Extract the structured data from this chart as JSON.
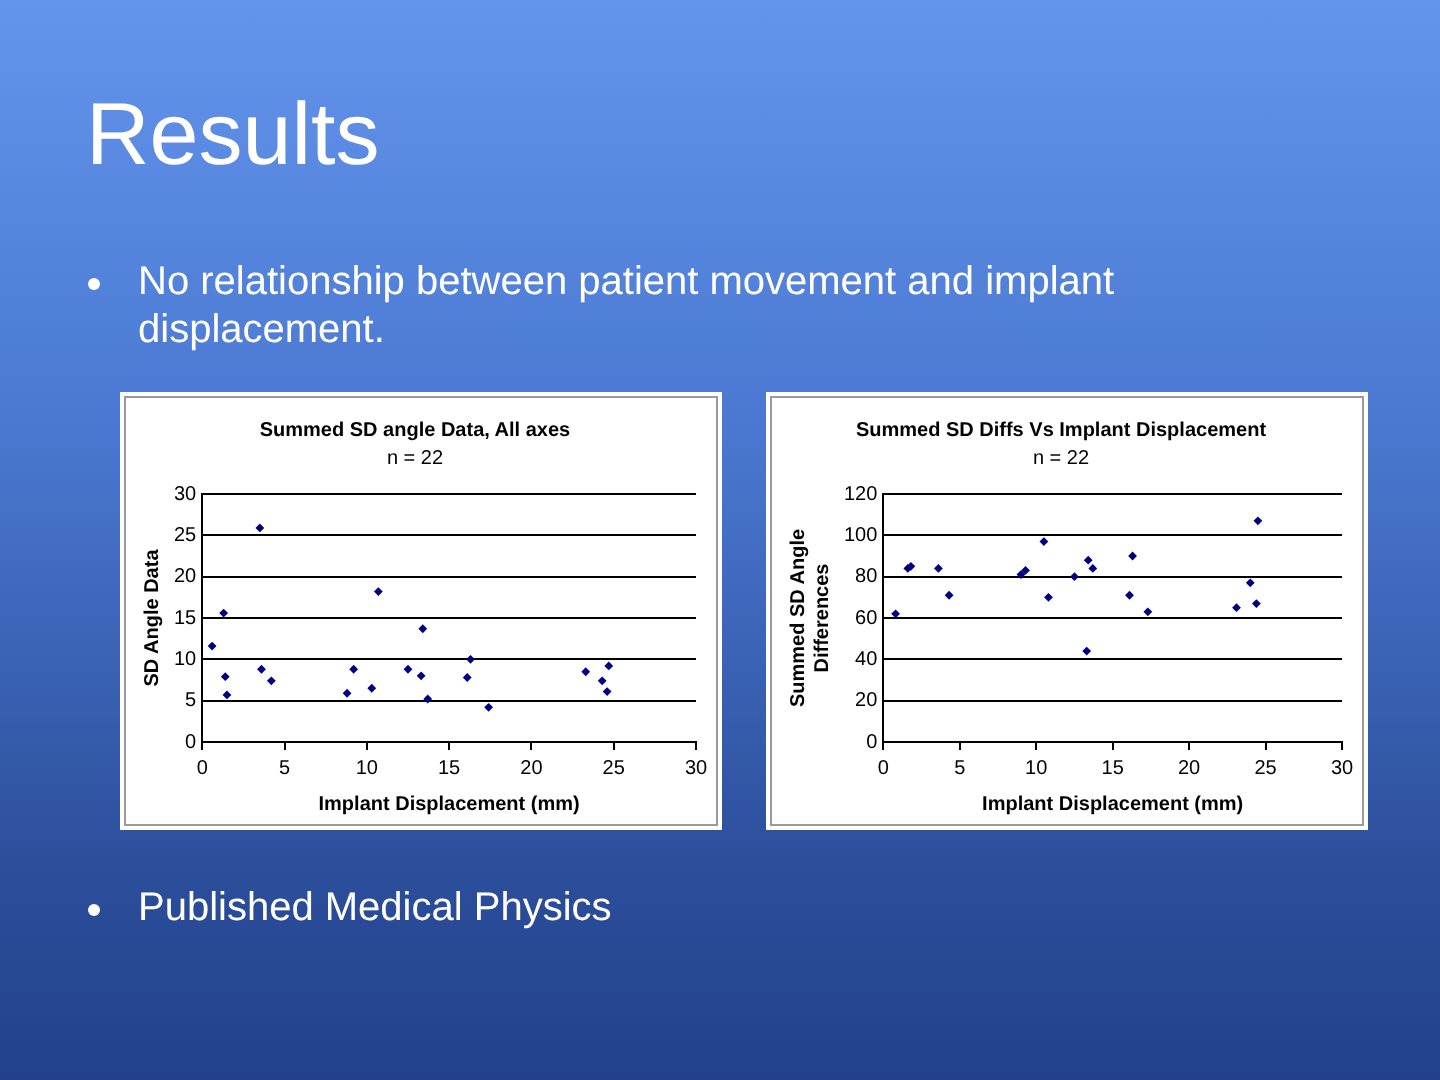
{
  "chart_data": [
    {
      "type": "other",
      "title": "Results",
      "annotations": [
        "No relationship between patient movement and implant displacement.",
        "Published Medical Physics"
      ]
    },
    {
      "type": "scatter",
      "title": "Summed SD angle Data, All axes",
      "subtitle": "n = 22",
      "xlabel": "Implant Displacement (mm)",
      "ylabel": "SD Angle Data",
      "x": [
        0.6,
        1.3,
        1.4,
        1.5,
        3.5,
        3.6,
        4.2,
        8.8,
        9.2,
        10.3,
        10.7,
        12.5,
        13.3,
        13.4,
        13.7,
        16.1,
        16.3,
        17.4,
        23.3,
        24.3,
        24.7,
        24.6
      ],
      "values": [
        11.6,
        15.6,
        7.9,
        5.7,
        25.9,
        8.8,
        7.4,
        5.9,
        8.8,
        6.5,
        18.2,
        8.8,
        8.0,
        13.7,
        5.2,
        7.8,
        10.0,
        4.2,
        8.5,
        7.4,
        9.2,
        6.1
      ],
      "color": "#000080",
      "marker": "diamond",
      "xlim": [
        0,
        30
      ],
      "xticks": [
        0,
        5,
        10,
        15,
        20,
        25,
        30
      ],
      "ylim": [
        0,
        30
      ],
      "yticks": [
        0,
        5,
        10,
        15,
        20,
        25,
        30
      ],
      "grid": "y"
    },
    {
      "type": "scatter",
      "title": "Summed SD Diffs Vs Implant Displacement",
      "subtitle": "n = 22",
      "xlabel": "Implant Displacement (mm)",
      "ylabel": "Summed SD Angle Differences",
      "x": [
        0.8,
        1.6,
        1.8,
        3.6,
        4.3,
        9.0,
        9.3,
        10.5,
        10.8,
        12.5,
        13.4,
        13.3,
        13.7,
        16.1,
        16.3,
        17.3,
        23.1,
        24.0,
        24.4,
        24.5
      ],
      "values": [
        62,
        84,
        85,
        84,
        71,
        81,
        83,
        97,
        70,
        80,
        88,
        44,
        84,
        71,
        90,
        63,
        65,
        77,
        67,
        107
      ],
      "color": "#000080",
      "marker": "diamond",
      "xlim": [
        0,
        30
      ],
      "xticks": [
        0,
        5,
        10,
        15,
        20,
        25,
        30
      ],
      "ylim": [
        0,
        120
      ],
      "yticks": [
        0,
        20,
        40,
        60,
        80,
        100,
        120
      ],
      "grid": "y"
    }
  ]
}
